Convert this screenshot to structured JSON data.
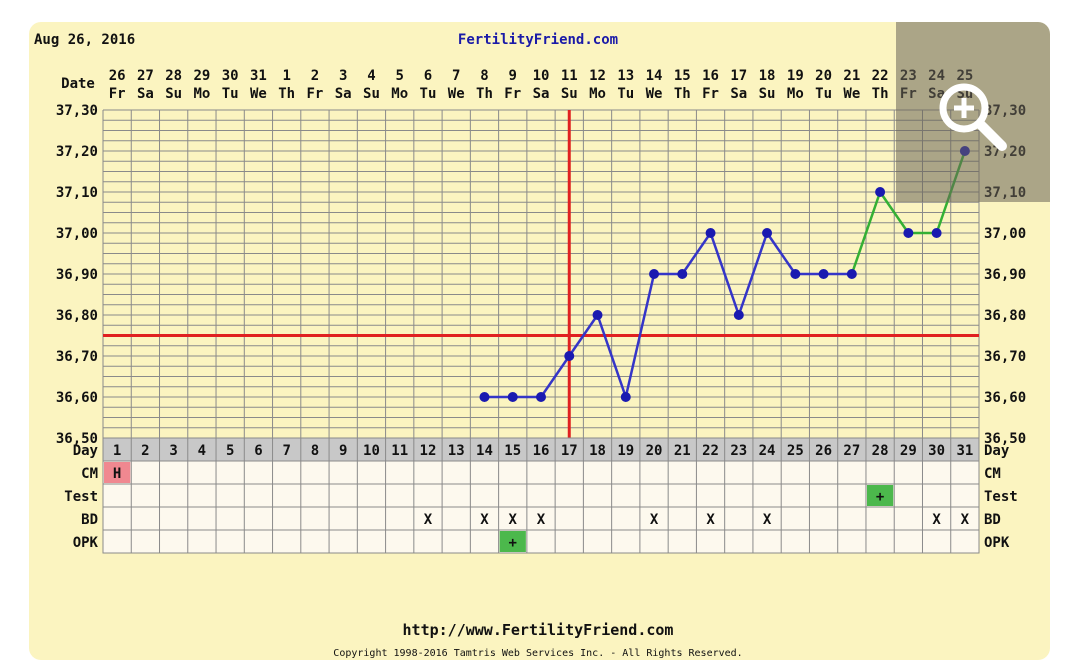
{
  "header": {
    "date": "Aug 26, 2016",
    "site": "FertilityFriend.com"
  },
  "footer": {
    "url": "http://www.FertilityFriend.com",
    "copyright": "Copyright 1998-2016 Tamtris Web Services Inc. - All Rights Reserved."
  },
  "colors": {
    "background": "#fbf4c0",
    "grid": "#8a8a8a",
    "temp_line_pre": "#3535c8",
    "temp_line_post": "#34b034",
    "marker": "#1a1ab0",
    "coverline": "#e02020",
    "cd1_line": "#e02020",
    "cm_h_box": "#f08890",
    "green_box": "#4cb84c",
    "day_row_bg": "#c8c8c8"
  },
  "icons": {
    "zoom": "zoom-in-icon"
  },
  "chart_data": {
    "type": "line",
    "row_labels": {
      "date": "Date",
      "day": "Day",
      "cm": "CM",
      "test": "Test",
      "bd": "BD",
      "opk": "OPK"
    },
    "dates": [
      "26",
      "27",
      "28",
      "29",
      "30",
      "31",
      "1",
      "2",
      "3",
      "4",
      "5",
      "6",
      "7",
      "8",
      "9",
      "10",
      "11",
      "12",
      "13",
      "14",
      "15",
      "16",
      "17",
      "18",
      "19",
      "20",
      "21",
      "22",
      "23",
      "24",
      "25"
    ],
    "weekdays": [
      "Fr",
      "Sa",
      "Su",
      "Mo",
      "Tu",
      "We",
      "Th",
      "Fr",
      "Sa",
      "Su",
      "Mo",
      "Tu",
      "We",
      "Th",
      "Fr",
      "Sa",
      "Su",
      "Mo",
      "Tu",
      "We",
      "Th",
      "Fr",
      "Sa",
      "Su",
      "Mo",
      "Tu",
      "We",
      "Th",
      "Fr",
      "Sa",
      "Su"
    ],
    "days": [
      "1",
      "2",
      "3",
      "4",
      "5",
      "6",
      "7",
      "8",
      "9",
      "10",
      "11",
      "12",
      "13",
      "14",
      "15",
      "16",
      "17",
      "18",
      "19",
      "20",
      "21",
      "22",
      "23",
      "24",
      "25",
      "26",
      "27",
      "28",
      "29",
      "30",
      "31"
    ],
    "ylim": [
      36.5,
      37.3
    ],
    "yticks": [
      "36,50",
      "36,60",
      "36,70",
      "36,80",
      "36,90",
      "37,00",
      "37,10",
      "37,20",
      "37,30"
    ],
    "temperatures": [
      {
        "day": 14,
        "value": 36.6
      },
      {
        "day": 15,
        "value": 36.6
      },
      {
        "day": 16,
        "value": 36.6
      },
      {
        "day": 17,
        "value": 36.7
      },
      {
        "day": 18,
        "value": 36.8
      },
      {
        "day": 19,
        "value": 36.6
      },
      {
        "day": 20,
        "value": 36.9
      },
      {
        "day": 21,
        "value": 36.9
      },
      {
        "day": 22,
        "value": 37.0
      },
      {
        "day": 23,
        "value": 36.8
      },
      {
        "day": 24,
        "value": 37.0
      },
      {
        "day": 25,
        "value": 36.9
      },
      {
        "day": 26,
        "value": 36.9
      },
      {
        "day": 27,
        "value": 36.9
      },
      {
        "day": 28,
        "value": 37.1
      },
      {
        "day": 29,
        "value": 37.0
      },
      {
        "day": 30,
        "value": 37.0
      },
      {
        "day": 31,
        "value": 37.2
      }
    ],
    "post_test_from_day": 27,
    "coverline": 36.75,
    "ovulation_day": 17,
    "cm": [
      {
        "day": 1,
        "text": "H"
      }
    ],
    "test": [
      {
        "day": 28,
        "text": "+"
      }
    ],
    "bd": [
      {
        "day": 12,
        "text": "X"
      },
      {
        "day": 14,
        "text": "X"
      },
      {
        "day": 15,
        "text": "X"
      },
      {
        "day": 16,
        "text": "X"
      },
      {
        "day": 20,
        "text": "X"
      },
      {
        "day": 22,
        "text": "X"
      },
      {
        "day": 24,
        "text": "X"
      },
      {
        "day": 30,
        "text": "X"
      },
      {
        "day": 31,
        "text": "X"
      }
    ],
    "opk": [
      {
        "day": 15,
        "text": "+"
      }
    ]
  }
}
